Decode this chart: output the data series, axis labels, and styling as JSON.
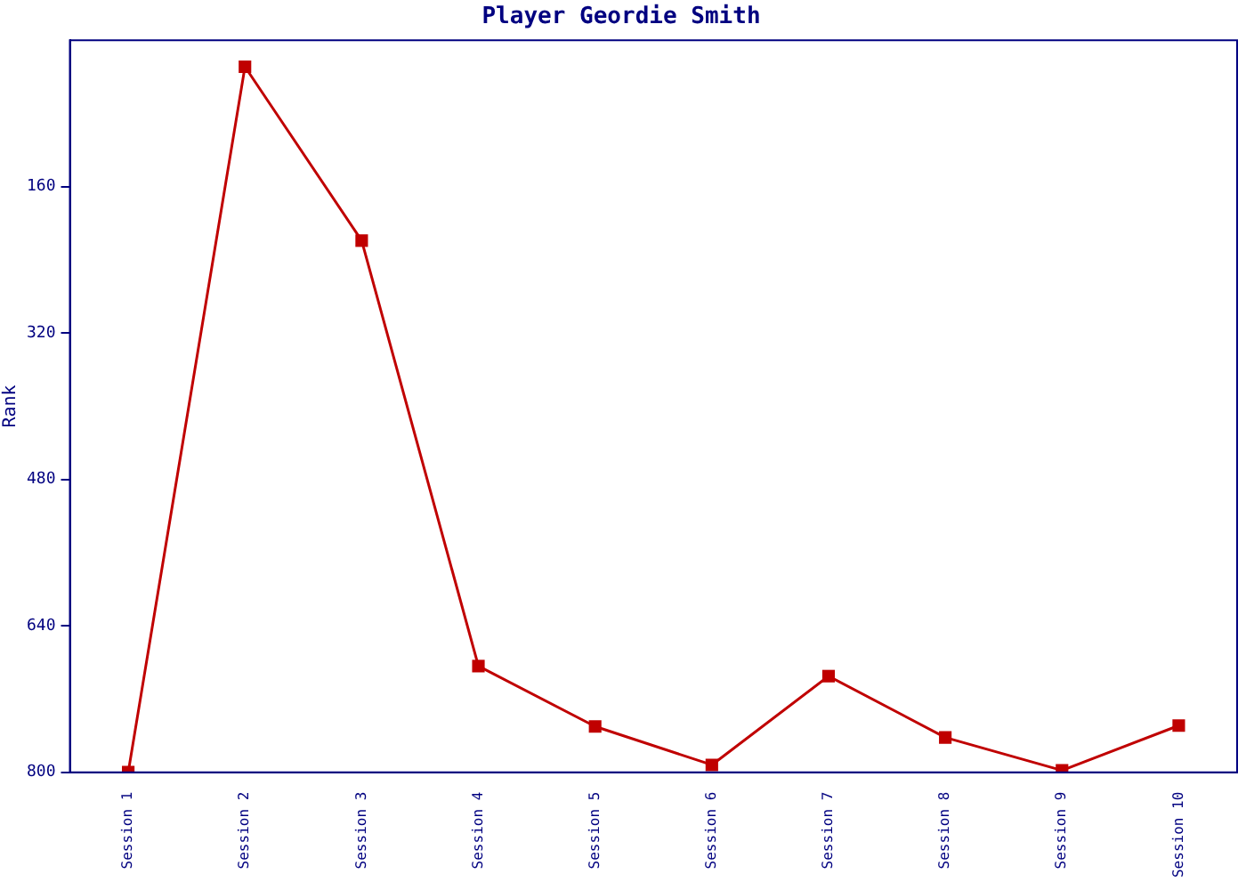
{
  "chart_data": {
    "type": "line",
    "title": "Player Geordie Smith",
    "ylabel": "Rank",
    "categories": [
      "Session 1",
      "Session 2",
      "Session 3",
      "Session 4",
      "Session 5",
      "Session 6",
      "Session 7",
      "Session 8",
      "Session 9",
      "Session 10"
    ],
    "series": [
      {
        "color": "#c00000",
        "values": [
          800,
          29,
          219,
          684,
          750,
          792,
          695,
          762,
          798,
          749
        ]
      }
    ],
    "ylim": [
      800,
      0
    ],
    "yticks": [
      160,
      320,
      480,
      640,
      800
    ],
    "grid": false,
    "legend": false,
    "marker": "square",
    "line_style": "solid"
  }
}
